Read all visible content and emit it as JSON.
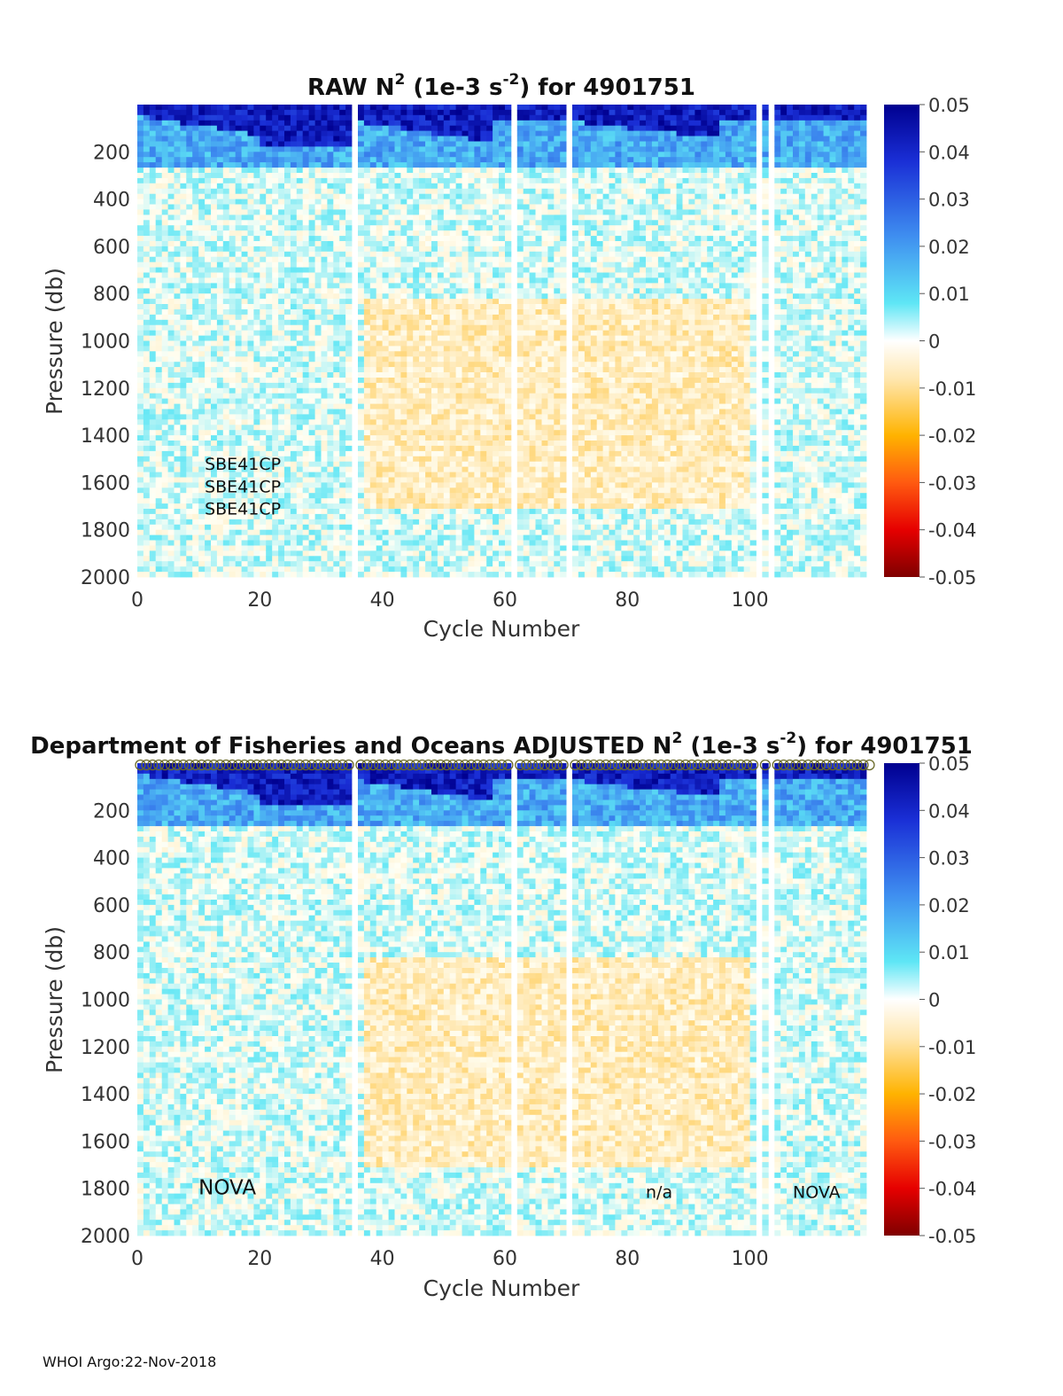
{
  "footer": "WHOI Argo:22-Nov-2018",
  "chart_data": [
    {
      "type": "heatmap",
      "title_main": "RAW N",
      "title_sup": "2",
      "title_mid": " (1e-3 s",
      "title_sup2": "-2",
      "title_end": ") for 4901751",
      "xlabel": "Cycle Number",
      "ylabel": "Pressure (db)",
      "xlim": [
        0,
        119
      ],
      "ylim": [
        0,
        2000
      ],
      "y_reversed": true,
      "xticks": [
        "0",
        "20",
        "40",
        "60",
        "80",
        "100"
      ],
      "yticks": [
        "200",
        "400",
        "600",
        "800",
        "1000",
        "1200",
        "1400",
        "1600",
        "1800",
        "2000"
      ],
      "clim": [
        -0.05,
        0.05
      ],
      "colorbar_ticks": [
        "0.05",
        "0.04",
        "0.03",
        "0.02",
        "0.01",
        "0",
        "-0.01",
        "-0.02",
        "-0.03",
        "-0.04",
        "-0.05"
      ],
      "colormap": "jet-white-center",
      "missing_cycles": [
        35,
        61,
        70,
        101,
        103
      ],
      "annotations": [
        {
          "text": "SBE41CP",
          "x": 11,
          "y": 1520
        },
        {
          "text": "SBE41CP",
          "x": 11,
          "y": 1615
        },
        {
          "text": "SBE41CP",
          "x": 11,
          "y": 1710
        }
      ]
    },
    {
      "type": "heatmap",
      "title_prefix": "Department of Fisheries and Oceans  ADJUSTED N",
      "title_sup": "2",
      "title_mid": " (1e-3 s",
      "title_sup2": "-2",
      "title_end": ") for 4901751",
      "xlabel": "Cycle Number",
      "ylabel": "Pressure (db)",
      "xlim": [
        0,
        119
      ],
      "ylim": [
        0,
        2000
      ],
      "y_reversed": true,
      "xticks": [
        "0",
        "20",
        "40",
        "60",
        "80",
        "100"
      ],
      "yticks": [
        "200",
        "400",
        "600",
        "800",
        "1000",
        "1200",
        "1400",
        "1600",
        "1800",
        "2000"
      ],
      "clim": [
        -0.05,
        0.05
      ],
      "colorbar_ticks": [
        "0.05",
        "0.04",
        "0.03",
        "0.02",
        "0.01",
        "0",
        "-0.01",
        "-0.02",
        "-0.03",
        "-0.04",
        "-0.05"
      ],
      "colormap": "jet-white-center",
      "missing_cycles": [
        35,
        61,
        70,
        101,
        103
      ],
      "qc_markers_at_surface": true,
      "annotations": [
        {
          "text": "NOVA",
          "x": 10,
          "y": 1800
        },
        {
          "text": "n/a",
          "x": 83,
          "y": 1815
        },
        {
          "text": "NOVA",
          "x": 107,
          "y": 1815
        }
      ]
    }
  ]
}
